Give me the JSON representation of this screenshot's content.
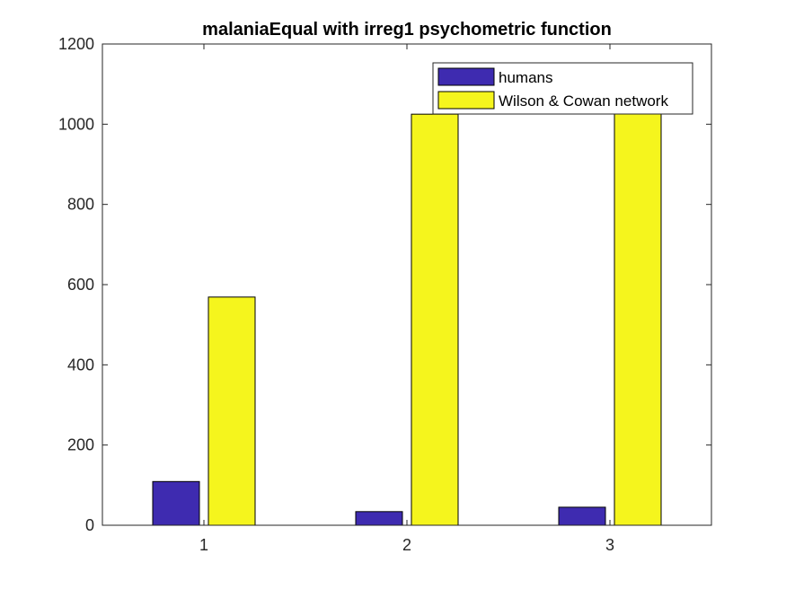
{
  "chart_data": {
    "type": "bar",
    "title": "malaniaEqual with irreg1 psychometric function",
    "xlabel": "",
    "ylabel": "",
    "categories": [
      "1",
      "2",
      "3"
    ],
    "ylim": [
      0,
      1200
    ],
    "yticks": [
      0,
      200,
      400,
      600,
      800,
      1000,
      1200
    ],
    "ytick_labels": [
      "0",
      "200",
      "400",
      "600",
      "800",
      "1000",
      "1200"
    ],
    "grid": false,
    "legend_position": "top-right",
    "series": [
      {
        "name": "humans",
        "color": "#3e2bb0",
        "values": [
          109,
          34,
          45
        ]
      },
      {
        "name": "Wilson & Cowan network",
        "color": "#f5f51d",
        "values": [
          569,
          1025,
          1030
        ]
      }
    ]
  }
}
